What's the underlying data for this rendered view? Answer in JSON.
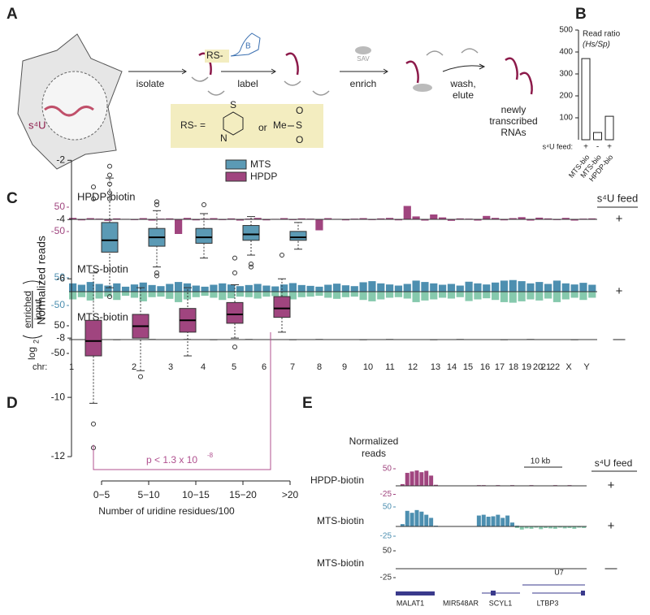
{
  "panel_a": {
    "label": "A",
    "s4u": "s⁴U",
    "isolate": "isolate",
    "label_step": "label",
    "tag": "RS-",
    "biotin": "B",
    "enrich": "enrich",
    "sav": "SAV",
    "wash": "wash,",
    "elute": "elute",
    "product": [
      "newly",
      "transcribed",
      "RNAs"
    ],
    "rs_def": "RS-  =",
    "or": "or",
    "me": "Me",
    "s1": "S",
    "s2": "S",
    "o1": "O",
    "o2": "O",
    "n": "N"
  },
  "chart_data": [
    {
      "type": "bar",
      "label": "B",
      "title": "Read ratio",
      "subtitle": "(Hs/Sp)",
      "categories": [
        "MTS-bio",
        "MTS-bio",
        "HPDP-bio"
      ],
      "values": [
        370,
        33,
        107
      ],
      "color": "#ffffff",
      "ylim": [
        0,
        500
      ],
      "yticks": [
        100,
        200,
        300,
        400,
        500
      ],
      "feed_label": "s⁴U feed:",
      "feed": [
        "+",
        "-",
        "+"
      ]
    },
    {
      "type": "track",
      "label": "C",
      "ylabel": "Normalized reads",
      "feed_title": "s⁴U feed",
      "chr_label": "chr:",
      "chromosomes": [
        "1",
        "2",
        "3",
        "4",
        "5",
        "6",
        "7",
        "8",
        "9",
        "10",
        "11",
        "12",
        "13",
        "14",
        "15",
        "16",
        "17",
        "18",
        "19",
        "20",
        "21",
        "22",
        "X",
        "Y"
      ],
      "tracks": [
        {
          "name": "HPDP-biotin",
          "ylim": [
            -50,
            50
          ],
          "yticks": [
            50,
            -50
          ],
          "feed": "+",
          "tick_color": "#a0457f",
          "series": [
            {
              "color": "#a0457f",
              "values": [
                6,
                -4,
                5,
                3,
                -6,
                4,
                2,
                -3,
                5,
                -5,
                3,
                4,
                -60,
                6,
                -4,
                3,
                5,
                -3,
                4,
                -5,
                3,
                6,
                -4,
                2,
                5,
                -3,
                4,
                3,
                -45,
                5,
                2,
                -4,
                3,
                5,
                -3,
                4,
                6,
                -4,
                55,
                12,
                -5,
                20,
                8,
                -6,
                4,
                3,
                -5,
                14,
                6,
                -4,
                5,
                9,
                -5,
                7,
                4,
                -3,
                6,
                -5,
                3,
                4
              ]
            }
          ]
        },
        {
          "name": "MTS-biotin",
          "ylim": [
            -50,
            50
          ],
          "yticks": [
            50,
            -50
          ],
          "feed": "+",
          "tick_color": "#4d8fb0",
          "series": [
            {
              "color": "#4d8fb0",
              "values": [
                30,
                25,
                35,
                28,
                22,
                30,
                18,
                26,
                33,
                24,
                20,
                28,
                35,
                30,
                22,
                18,
                25,
                30,
                26,
                20,
                24,
                28,
                22,
                19,
                26,
                31,
                24,
                21,
                18,
                25,
                29,
                23,
                20,
                34,
                38,
                30,
                26,
                22,
                28,
                40,
                35,
                30,
                25,
                28,
                22,
                36,
                30,
                26,
                33,
                40,
                42,
                38,
                30,
                35,
                28,
                40,
                30,
                26,
                32,
                25
              ]
            },
            {
              "color": "#86c9ad",
              "values": [
                -28,
                -20,
                -32,
                -25,
                -18,
                -30,
                -15,
                -22,
                -35,
                -20,
                -18,
                -26,
                -38,
                -28,
                -20,
                -15,
                -22,
                -30,
                -24,
                -18,
                -20,
                -25,
                -18,
                -16,
                -24,
                -28,
                -20,
                -18,
                -15,
                -22,
                -26,
                -20,
                -18,
                -30,
                -35,
                -28,
                -22,
                -20,
                -25,
                -38,
                -32,
                -28,
                -22,
                -25,
                -20,
                -34,
                -28,
                -24,
                -30,
                -38,
                -40,
                -35,
                -28,
                -32,
                -25,
                -38,
                -28,
                -22,
                -30,
                -22
              ]
            }
          ]
        },
        {
          "name": "MTS-biotin",
          "ylim": [
            -50,
            50
          ],
          "yticks": [
            50,
            -50
          ],
          "feed": "—",
          "tick_color": "#222222",
          "series": [
            {
              "color": "#222222",
              "values": [
                1,
                -1,
                2,
                -1,
                1,
                -2,
                1,
                -1,
                1,
                2,
                -1,
                1,
                -1,
                2,
                -1,
                1,
                -2,
                1,
                -1,
                1,
                2,
                -1,
                1,
                -1,
                1,
                -2,
                1,
                -1,
                2,
                -1,
                1,
                -1,
                1,
                -2,
                1,
                -1,
                2,
                -1,
                1,
                -1,
                1,
                -2,
                1,
                -1,
                2,
                -1,
                1,
                -1,
                1,
                -2,
                1,
                -1,
                2,
                -1,
                1,
                -1,
                1,
                -2,
                1,
                -1
              ]
            }
          ]
        }
      ]
    },
    {
      "type": "box",
      "label": "D",
      "ylabel": [
        "log",
        "2",
        "enriched",
        "input"
      ],
      "xlabel": "Number of uridine residues/100",
      "categories": [
        "0−5",
        "5−10",
        "10−15",
        "15−20",
        ">20"
      ],
      "ylim": [
        -12.3,
        -1.8
      ],
      "yticks": [
        -2,
        -4,
        -6,
        -8,
        -10,
        -12
      ],
      "annotation": "p < 1.3 x 10",
      "annotation_exp": "-8",
      "annotation_color": "#b0508f",
      "series": [
        {
          "name": "MTS",
          "color": "#5b9ab5",
          "whisker_low": [
            -6.3,
            -5.6,
            -5.3,
            -5.2,
            -5.0
          ],
          "q1": [
            -5.1,
            -4.9,
            -4.8,
            -4.7,
            -4.7
          ],
          "median": [
            -4.7,
            -4.6,
            -4.6,
            -4.5,
            -4.6
          ],
          "q3": [
            -4.1,
            -4.3,
            -4.3,
            -4.2,
            -4.4
          ],
          "whisker_high": [
            -2.6,
            -3.7,
            -3.8,
            -3.9,
            -4.1
          ],
          "outliers": [
            [
              -2.2,
              -2.5,
              -2.8,
              -3.1,
              -3.3,
              -6.6
            ],
            [
              -3.4,
              -3.5,
              -5.8,
              -5.9
            ],
            [
              -3.5
            ],
            [
              -5.5,
              -5.6
            ],
            []
          ]
        },
        {
          "name": "HPDP",
          "color": "#a0457f",
          "whisker_low": [
            -10.2,
            -9.1,
            -8.6,
            -8.0,
            -7.8
          ],
          "q1": [
            -8.6,
            -8.0,
            -7.8,
            -7.5,
            -7.3
          ],
          "median": [
            -8.1,
            -7.6,
            -7.4,
            -7.2,
            -7.0
          ],
          "q3": [
            -7.4,
            -7.2,
            -7.0,
            -6.8,
            -6.6
          ],
          "whisker_high": [
            -5.8,
            -6.3,
            -6.3,
            -6.2,
            -6.0
          ],
          "outliers": [
            [
              -2.9,
              -3.3,
              -10.9,
              -11.7
            ],
            [
              -9.3
            ],
            [],
            [
              -5.3,
              -5.8,
              -8.3
            ],
            [
              -5.2
            ]
          ]
        }
      ]
    },
    {
      "type": "track",
      "label": "E",
      "ylabel": "Normalized reads",
      "scale_label": "10 kb",
      "feed_title": "s⁴U feed",
      "genes": [
        "MALAT1",
        "MIR548AR",
        "SCYL1",
        "U7",
        "LTBP3"
      ],
      "tracks": [
        {
          "name": "HPDP-biotin",
          "ylim": [
            -25,
            50
          ],
          "yticks": [
            50,
            -25
          ],
          "feed": "+",
          "tick_color": "#a0457f",
          "series": [
            {
              "color": "#a0457f",
              "values": [
                1,
                5,
                38,
                42,
                45,
                40,
                44,
                30,
                3,
                1,
                1,
                1,
                1,
                1,
                1,
                1,
                1,
                2,
                2,
                1,
                1,
                2,
                1,
                1,
                2,
                1,
                1,
                1,
                2,
                1,
                1,
                1,
                1,
                2,
                1,
                1,
                2,
                1,
                1,
                1
              ]
            }
          ]
        },
        {
          "name": "MTS-biotin",
          "ylim": [
            -25,
            50
          ],
          "yticks": [
            50,
            -25
          ],
          "feed": "+",
          "tick_color": "#4d8fb0",
          "series": [
            {
              "color": "#4d8fb0",
              "values": [
                1,
                6,
                40,
                35,
                42,
                38,
                30,
                22,
                2,
                1,
                1,
                1,
                1,
                1,
                1,
                1,
                1,
                28,
                30,
                25,
                26,
                30,
                22,
                28,
                10,
                2,
                0,
                0,
                0,
                0,
                0,
                0,
                0,
                0,
                0,
                0,
                0,
                0,
                0,
                0
              ]
            },
            {
              "color": "#86c9ad",
              "values": [
                0,
                0,
                0,
                0,
                0,
                0,
                0,
                0,
                0,
                0,
                0,
                0,
                0,
                0,
                0,
                0,
                0,
                0,
                0,
                0,
                0,
                0,
                0,
                0,
                0,
                -4,
                -8,
                -5,
                -6,
                -3,
                -7,
                -4,
                -5,
                -6,
                -3,
                -5,
                -4,
                -6,
                -3,
                -4
              ]
            }
          ]
        },
        {
          "name": "MTS-biotin",
          "ylim": [
            -25,
            50
          ],
          "yticks": [
            50,
            -25
          ],
          "feed": "—",
          "tick_color": "#333333",
          "series": [
            {
              "color": "#444444",
              "values": [
                1,
                -1,
                1,
                1,
                -1,
                1,
                1,
                -1,
                1,
                1,
                -1,
                1,
                1,
                -1,
                1,
                1,
                -1,
                1,
                1,
                -1,
                1,
                1,
                -1,
                1,
                1,
                -1,
                1,
                1,
                -1,
                1,
                1,
                -1,
                1,
                1,
                -1,
                1,
                1,
                -1,
                1,
                1
              ]
            }
          ]
        }
      ]
    }
  ]
}
